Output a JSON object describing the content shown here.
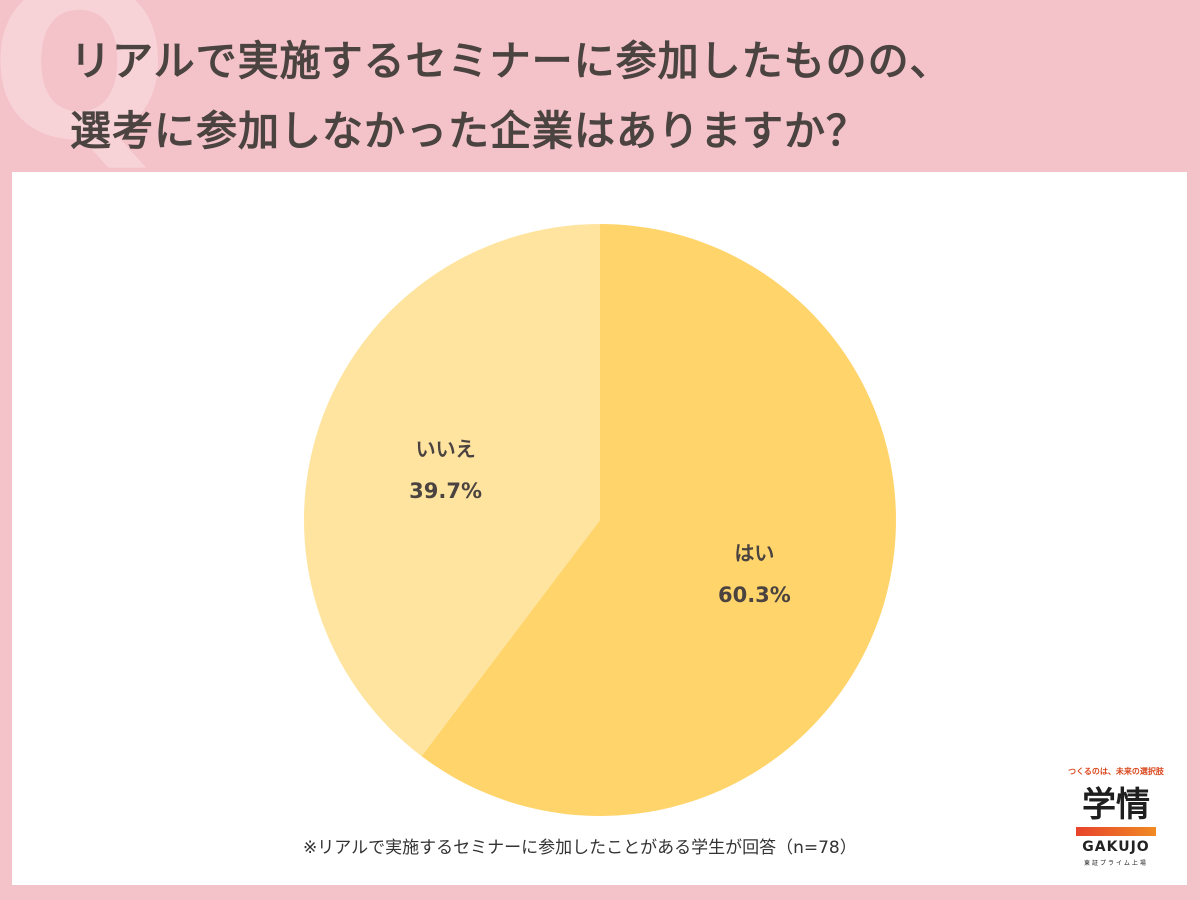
{
  "title_lines": [
    "リアルで実施するセミナーに参加したものの、",
    "選考に参加しなかった企業はありますか？"
  ],
  "decor_glyph": "Q",
  "chart_data": {
    "type": "pie",
    "start_angle_deg": 0,
    "direction": "clockwise",
    "slices": [
      {
        "label": "はい",
        "value": 60.3,
        "display": "60.3%",
        "color": "#ffd56b"
      },
      {
        "label": "いいえ",
        "value": 39.7,
        "display": "39.7%",
        "color": "#ffe49f"
      }
    ],
    "legend": "none"
  },
  "footnote": "※リアルで実施するセミナーに参加したことがある学生が回答（n=78）",
  "brand": {
    "tagline": "つくるのは、未来の選択肢",
    "wordmark": "学情",
    "latin": "GAKUJO",
    "exchange": "東証プライム上場"
  },
  "colors": {
    "background": "#f4c3c9",
    "panel": "#ffffff",
    "title_text": "#4a4340",
    "label_text": "#4a4340"
  }
}
